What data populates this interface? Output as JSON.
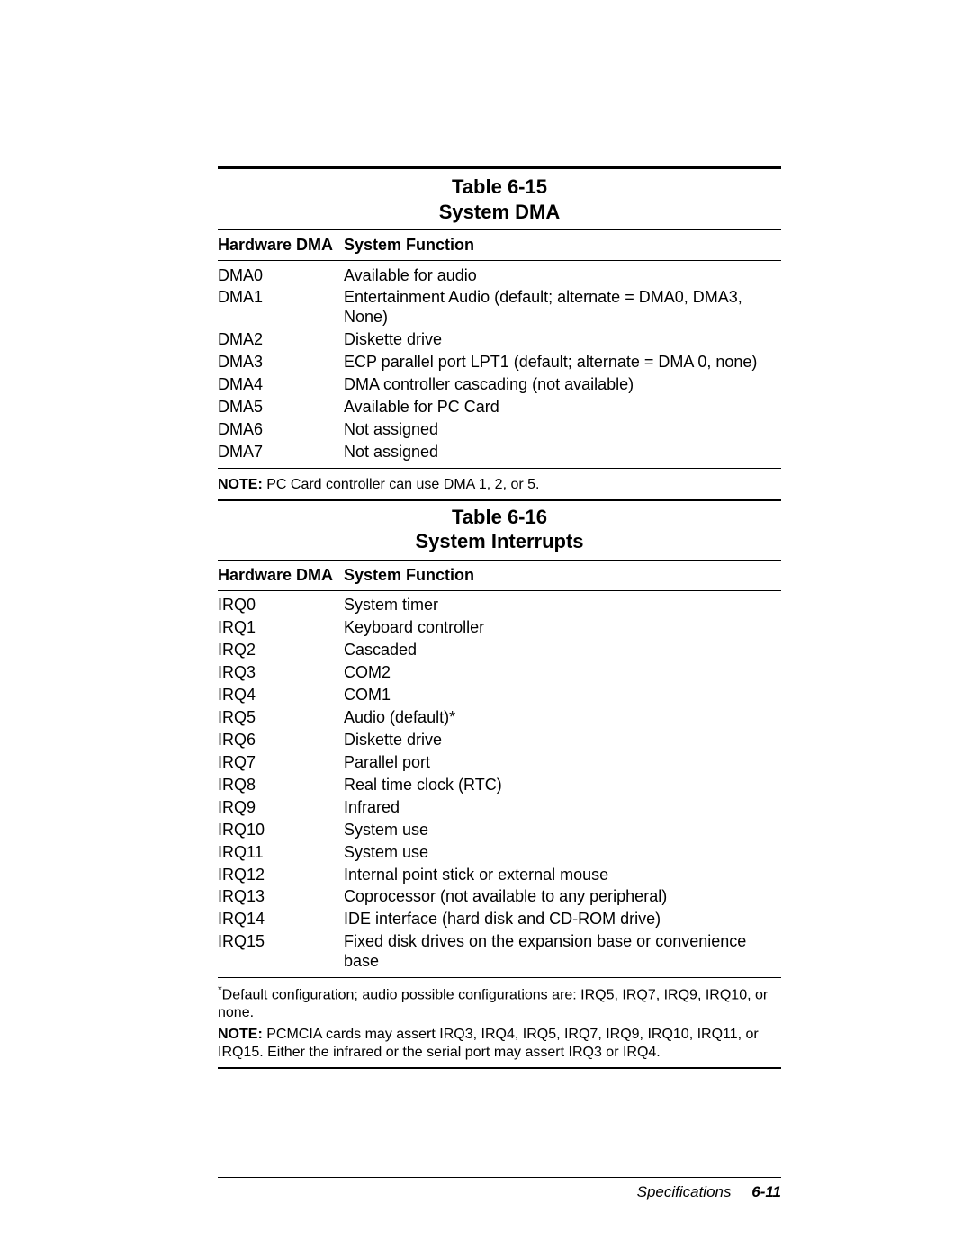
{
  "footer": {
    "section": "Specifications",
    "page": "6-11"
  },
  "table1": {
    "title_line1": "Table 6-15",
    "title_line2": "System DMA",
    "header_col1": "Hardware DMA",
    "header_col2": "System Function",
    "rows": [
      {
        "c1": "DMA0",
        "c2": "Available for audio"
      },
      {
        "c1": "DMA1",
        "c2": "Entertainment Audio (default; alternate = DMA0, DMA3, None)"
      },
      {
        "c1": "DMA2",
        "c2": "Diskette drive"
      },
      {
        "c1": "DMA3",
        "c2": "ECP parallel port LPT1 (default; alternate = DMA 0, none)"
      },
      {
        "c1": "DMA4",
        "c2": "DMA controller cascading (not available)"
      },
      {
        "c1": "DMA5",
        "c2": "Available for PC Card"
      },
      {
        "c1": "DMA6",
        "c2": "Not assigned"
      },
      {
        "c1": "DMA7",
        "c2": "Not assigned"
      }
    ],
    "note_label": "NOTE:",
    "note_text": " PC Card controller can use DMA 1, 2, or 5."
  },
  "table2": {
    "title_line1": "Table 6-16",
    "title_line2": "System Interrupts",
    "header_col1": "Hardware DMA",
    "header_col2": "System Function",
    "rows": [
      {
        "c1": "IRQ0",
        "c2": "System timer"
      },
      {
        "c1": "IRQ1",
        "c2": "Keyboard controller"
      },
      {
        "c1": "IRQ2",
        "c2": "Cascaded"
      },
      {
        "c1": "IRQ3",
        "c2": "COM2"
      },
      {
        "c1": "IRQ4",
        "c2": "COM1"
      },
      {
        "c1": "IRQ5",
        "c2": "Audio (default)*"
      },
      {
        "c1": "IRQ6",
        "c2": "Diskette drive"
      },
      {
        "c1": "IRQ7",
        "c2": "Parallel port"
      },
      {
        "c1": "IRQ8",
        "c2": "Real time clock (RTC)"
      },
      {
        "c1": "IRQ9",
        "c2": "Infrared"
      },
      {
        "c1": "IRQ10",
        "c2": "System use"
      },
      {
        "c1": "IRQ11",
        "c2": "System use"
      },
      {
        "c1": "IRQ12",
        "c2": "Internal point stick or external mouse"
      },
      {
        "c1": "IRQ13",
        "c2": "Coprocessor (not available to any peripheral)"
      },
      {
        "c1": "IRQ14",
        "c2": "IDE interface (hard disk and CD-ROM drive)"
      },
      {
        "c1": "IRQ15",
        "c2": "Fixed disk drives on the expansion base or convenience base"
      }
    ],
    "footnote_star": "*",
    "footnote_text": "Default configuration; audio possible configurations are: IRQ5, IRQ7, IRQ9, IRQ10, or none.",
    "note_label": "NOTE:",
    "note_text": " PCMCIA cards may assert IRQ3, IRQ4, IRQ5, IRQ7, IRQ9, IRQ10, IRQ11, or IRQ15. Either the infrared or the serial port may assert IRQ3 or IRQ4."
  }
}
